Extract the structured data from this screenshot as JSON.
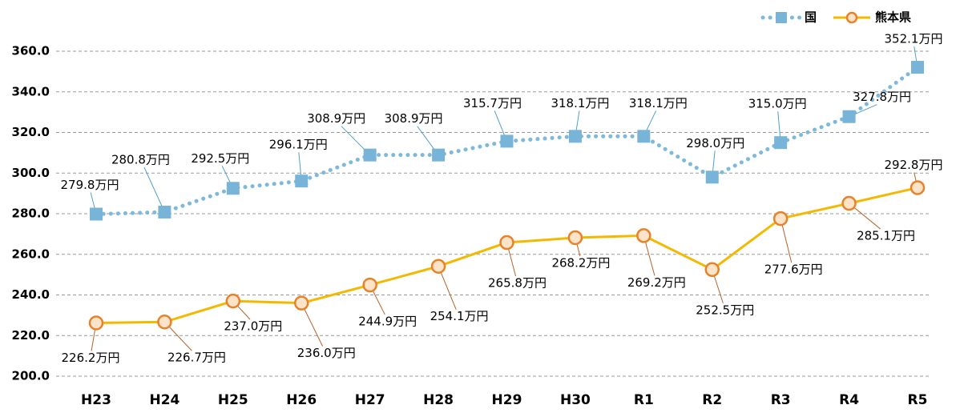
{
  "chart_data": {
    "type": "line",
    "categories": [
      "H23",
      "H24",
      "H25",
      "H26",
      "H27",
      "H28",
      "H29",
      "H30",
      "R1",
      "R2",
      "R3",
      "R4",
      "R5"
    ],
    "series": [
      {
        "name": "国",
        "color": "#7db9da",
        "marker_color": "#78b4d8",
        "marker": "square",
        "line_style": "dotted",
        "values": [
          279.8,
          280.8,
          292.5,
          296.1,
          308.9,
          308.9,
          315.7,
          318.1,
          318.1,
          298.0,
          315.0,
          327.8,
          352.1
        ],
        "value_labels": [
          "279.8万円",
          "280.8万円",
          "292.5万円",
          "296.1万円",
          "308.9万円",
          "308.9万円",
          "315.7万円",
          "318.1万円",
          "318.1万円",
          "298.0万円",
          "315.0万円",
          "327.8万円",
          "352.1万円"
        ]
      },
      {
        "name": "熊本県",
        "color": "#f5b800",
        "marker_color": "#e8822a",
        "marker": "circle",
        "line_style": "solid",
        "values": [
          226.2,
          226.7,
          237.0,
          236.0,
          244.9,
          254.1,
          265.8,
          268.2,
          269.2,
          252.5,
          277.6,
          285.1,
          292.8
        ],
        "value_labels": [
          "226.2万円",
          "226.7万円",
          "237.0万円",
          "236.0万円",
          "244.9万円",
          "254.1万円",
          "265.8万円",
          "268.2万円",
          "269.2万円",
          "252.5万円",
          "277.6万円",
          "285.1万円",
          "292.8万円"
        ]
      }
    ],
    "ylim": [
      200,
      360
    ],
    "yticks": [
      {
        "value": 200,
        "label": "200.0"
      },
      {
        "value": 220,
        "label": "220.0"
      },
      {
        "value": 240,
        "label": "240.0"
      },
      {
        "value": 260,
        "label": "260.0"
      },
      {
        "value": 280,
        "label": "280.0"
      },
      {
        "value": 300,
        "label": "300.0"
      },
      {
        "value": 320,
        "label": "320.0"
      },
      {
        "value": 340,
        "label": "340.0"
      },
      {
        "value": 360,
        "label": "360.0"
      }
    ],
    "grid": true,
    "legend": "top-right"
  }
}
